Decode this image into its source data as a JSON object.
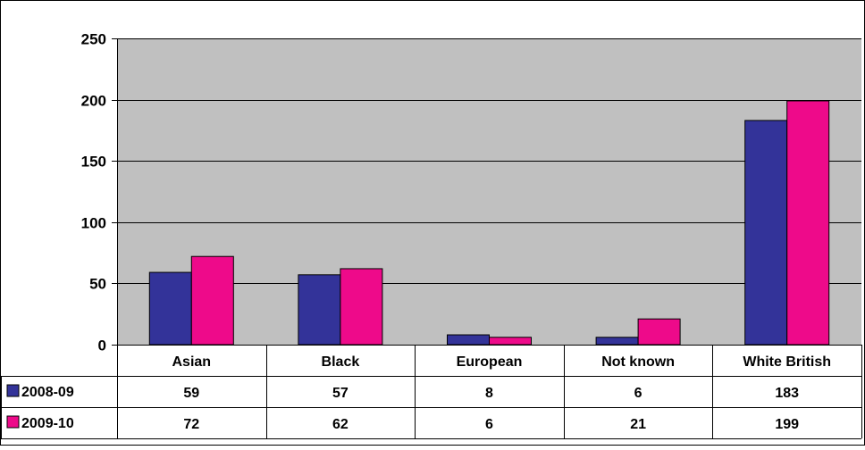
{
  "chart_data": {
    "type": "bar",
    "categories": [
      "Asian",
      "Black",
      "European",
      "Not known",
      "White British"
    ],
    "series": [
      {
        "name": "2008-09",
        "color": "#333399",
        "values": [
          59,
          57,
          8,
          6,
          183
        ]
      },
      {
        "name": "2009-10",
        "color": "#EE0A8A",
        "values": [
          72,
          62,
          6,
          21,
          199
        ]
      }
    ],
    "ylim": [
      0,
      250
    ],
    "yticks": [
      0,
      50,
      100,
      150,
      200,
      250
    ],
    "grid": true,
    "plot_background": "#C0C0C0",
    "legend": "data-table"
  }
}
